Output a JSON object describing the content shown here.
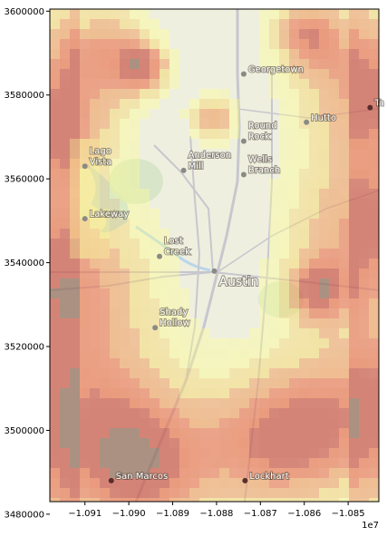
{
  "map": {
    "x_axis": {
      "ticks": [
        "−1.091",
        "−1.090",
        "−1.089",
        "−1.088",
        "−1.087",
        "−1.086",
        "−1.085"
      ],
      "tick_values": [
        -1.091,
        -1.09,
        -1.089,
        -1.088,
        -1.087,
        -1.086,
        -1.085
      ],
      "range": [
        -1.0918,
        -1.0843
      ],
      "offset_text": "1e7"
    },
    "y_axis": {
      "ticks": [
        "3480000",
        "3500000",
        "3520000",
        "3540000",
        "3560000",
        "3580000",
        "3600000"
      ],
      "tick_values": [
        3480000,
        3500000,
        3520000,
        3540000,
        3560000,
        3580000,
        3600000
      ],
      "range": [
        3483000,
        3600500
      ]
    },
    "basemap_colors": {
      "light": "#efefdf",
      "water": "#b9d6ea",
      "roads": "#c7c7cf",
      "parks": "#d2e2c2"
    },
    "heat_colors": [
      "#ffff88",
      "#f6d66a",
      "#ef9a5a",
      "#e8724f",
      "#c9584a",
      "#8f6a5a"
    ],
    "places": [
      {
        "name": "Georgetown",
        "x": -1.08738,
        "y": 3585000,
        "size": "normal"
      },
      {
        "name": "Round\nRock",
        "x": -1.08738,
        "y": 3569000,
        "size": "normal"
      },
      {
        "name": "Hutto",
        "x": -1.08595,
        "y": 3573500,
        "size": "normal"
      },
      {
        "name": "Ta",
        "x": -1.0845,
        "y": 3577000,
        "size": "normal"
      },
      {
        "name": "Lago\nVista",
        "x": -1.091,
        "y": 3563000,
        "size": "normal"
      },
      {
        "name": "Wells\nBranch",
        "x": -1.08738,
        "y": 3561000,
        "size": "normal"
      },
      {
        "name": "Anderson\nMill",
        "x": -1.08875,
        "y": 3562000,
        "size": "normal"
      },
      {
        "name": "Lakeway",
        "x": -1.091,
        "y": 3550500,
        "size": "normal"
      },
      {
        "name": "Lost\nCreek",
        "x": -1.0893,
        "y": 3541500,
        "size": "normal"
      },
      {
        "name": "Austin",
        "x": -1.08805,
        "y": 3538000,
        "size": "big"
      },
      {
        "name": "Shady\nHollow",
        "x": -1.0894,
        "y": 3524500,
        "size": "normal"
      },
      {
        "name": "San Marcos",
        "x": -1.0904,
        "y": 3488000,
        "size": "normal"
      },
      {
        "name": "Lockhart",
        "x": -1.08735,
        "y": 3488000,
        "size": "normal"
      }
    ]
  }
}
